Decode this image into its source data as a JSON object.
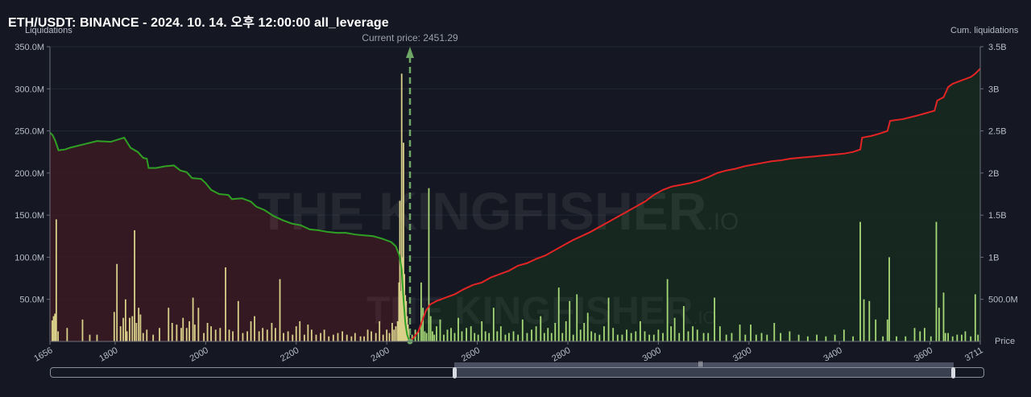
{
  "title": "ETH/USDT: BINANCE - 2024. 10. 14. 오후 12:00:00 all_leverage",
  "left_axis_label": "Liquidations",
  "right_axis_label": "Cum. liquidations",
  "x_axis_label": "Price",
  "watermark": "THE KINGFISHER.IO",
  "current_price_label": "Current price: 2451.29",
  "colors": {
    "background": "#151822",
    "bars_short_side": "#d9d08a",
    "bars_long_side": "#a8d977",
    "cum_long": "#2fa024",
    "cum_short": "#e32424",
    "fill_left": "#3b1a22",
    "fill_right": "#15291f",
    "current_price_line": "#6fa866"
  },
  "chart_data": {
    "type": "bar",
    "x_range": [
      1656,
      3711
    ],
    "x_ticks": [
      "1656",
      "1800",
      "2000",
      "2200",
      "2400",
      "2600",
      "2800",
      "3000",
      "3200",
      "3400",
      "3600",
      "3711"
    ],
    "y_left_ticks": [
      "50.0M",
      "100.0M",
      "150.0M",
      "200.0M",
      "250.0M",
      "300.0M",
      "350.0M"
    ],
    "y_left_range": [
      0,
      350
    ],
    "y_right_ticks": [
      "500.0M",
      "1B",
      "1.5B",
      "2B",
      "2.5B",
      "3B",
      "3.5B"
    ],
    "y_right_range": [
      0,
      3.5
    ],
    "current_price": 2451.29,
    "bars_unit": "M",
    "bars": [
      [
        1661,
        25
      ],
      [
        1664,
        30
      ],
      [
        1667,
        33
      ],
      [
        1670,
        145
      ],
      [
        1674,
        12
      ],
      [
        1694,
        16
      ],
      [
        1728,
        26
      ],
      [
        1744,
        8
      ],
      [
        1760,
        8
      ],
      [
        1798,
        35
      ],
      [
        1804,
        92
      ],
      [
        1812,
        18
      ],
      [
        1818,
        28
      ],
      [
        1823,
        50
      ],
      [
        1826,
        12
      ],
      [
        1832,
        28
      ],
      [
        1838,
        30
      ],
      [
        1843,
        132
      ],
      [
        1847,
        22
      ],
      [
        1852,
        40
      ],
      [
        1856,
        32
      ],
      [
        1862,
        10
      ],
      [
        1870,
        14
      ],
      [
        1884,
        8
      ],
      [
        1898,
        16
      ],
      [
        1918,
        40
      ],
      [
        1926,
        22
      ],
      [
        1936,
        20
      ],
      [
        1946,
        16
      ],
      [
        1950,
        28
      ],
      [
        1958,
        16
      ],
      [
        1964,
        24
      ],
      [
        1972,
        52
      ],
      [
        1976,
        20
      ],
      [
        1984,
        40
      ],
      [
        1996,
        10
      ],
      [
        2004,
        22
      ],
      [
        2012,
        18
      ],
      [
        2022,
        14
      ],
      [
        2032,
        16
      ],
      [
        2044,
        88
      ],
      [
        2052,
        14
      ],
      [
        2060,
        12
      ],
      [
        2072,
        48
      ],
      [
        2082,
        10
      ],
      [
        2092,
        12
      ],
      [
        2100,
        24
      ],
      [
        2108,
        30
      ],
      [
        2118,
        12
      ],
      [
        2126,
        16
      ],
      [
        2136,
        14
      ],
      [
        2146,
        22
      ],
      [
        2154,
        16
      ],
      [
        2164,
        74
      ],
      [
        2172,
        10
      ],
      [
        2182,
        12
      ],
      [
        2192,
        8
      ],
      [
        2200,
        18
      ],
      [
        2208,
        24
      ],
      [
        2218,
        8
      ],
      [
        2226,
        20
      ],
      [
        2234,
        14
      ],
      [
        2244,
        8
      ],
      [
        2254,
        10
      ],
      [
        2262,
        14
      ],
      [
        2272,
        6
      ],
      [
        2282,
        8
      ],
      [
        2292,
        10
      ],
      [
        2302,
        12
      ],
      [
        2312,
        8
      ],
      [
        2322,
        6
      ],
      [
        2330,
        10
      ],
      [
        2342,
        6
      ],
      [
        2350,
        6
      ],
      [
        2358,
        14
      ],
      [
        2366,
        12
      ],
      [
        2376,
        10
      ],
      [
        2384,
        24
      ],
      [
        2392,
        8
      ],
      [
        2400,
        14
      ],
      [
        2406,
        10
      ],
      [
        2412,
        22
      ],
      [
        2416,
        14
      ],
      [
        2420,
        18
      ],
      [
        2424,
        24
      ],
      [
        2427,
        70
      ],
      [
        2429,
        167
      ],
      [
        2431,
        60
      ],
      [
        2433,
        318
      ],
      [
        2435,
        100
      ],
      [
        2437,
        236
      ],
      [
        2439,
        80
      ],
      [
        2441,
        55
      ],
      [
        2443,
        48
      ],
      [
        2445,
        30
      ],
      [
        2447,
        20
      ],
      [
        2449,
        14
      ],
      [
        2456,
        8
      ],
      [
        2463,
        14
      ],
      [
        2470,
        12
      ],
      [
        2476,
        70
      ],
      [
        2480,
        40
      ],
      [
        2484,
        12
      ],
      [
        2488,
        10
      ],
      [
        2493,
        182
      ],
      [
        2497,
        30
      ],
      [
        2501,
        12
      ],
      [
        2505,
        8
      ],
      [
        2510,
        18
      ],
      [
        2518,
        26
      ],
      [
        2526,
        8
      ],
      [
        2534,
        14
      ],
      [
        2542,
        16
      ],
      [
        2550,
        10
      ],
      [
        2558,
        28
      ],
      [
        2566,
        12
      ],
      [
        2576,
        16
      ],
      [
        2586,
        18
      ],
      [
        2594,
        10
      ],
      [
        2602,
        8
      ],
      [
        2610,
        24
      ],
      [
        2618,
        12
      ],
      [
        2626,
        10
      ],
      [
        2636,
        40
      ],
      [
        2644,
        12
      ],
      [
        2652,
        18
      ],
      [
        2662,
        8
      ],
      [
        2670,
        10
      ],
      [
        2680,
        12
      ],
      [
        2690,
        8
      ],
      [
        2700,
        26
      ],
      [
        2710,
        10
      ],
      [
        2720,
        14
      ],
      [
        2730,
        18
      ],
      [
        2740,
        30
      ],
      [
        2748,
        10
      ],
      [
        2756,
        16
      ],
      [
        2764,
        10
      ],
      [
        2772,
        22
      ],
      [
        2780,
        64
      ],
      [
        2788,
        10
      ],
      [
        2796,
        24
      ],
      [
        2804,
        48
      ],
      [
        2812,
        8
      ],
      [
        2820,
        56
      ],
      [
        2828,
        14
      ],
      [
        2836,
        22
      ],
      [
        2844,
        34
      ],
      [
        2852,
        12
      ],
      [
        2860,
        10
      ],
      [
        2870,
        8
      ],
      [
        2880,
        18
      ],
      [
        2890,
        52
      ],
      [
        2900,
        16
      ],
      [
        2910,
        8
      ],
      [
        2920,
        8
      ],
      [
        2930,
        14
      ],
      [
        2940,
        10
      ],
      [
        2950,
        12
      ],
      [
        2960,
        24
      ],
      [
        2970,
        12
      ],
      [
        2980,
        8
      ],
      [
        2990,
        8
      ],
      [
        3000,
        14
      ],
      [
        3010,
        10
      ],
      [
        3020,
        74
      ],
      [
        3028,
        18
      ],
      [
        3036,
        28
      ],
      [
        3046,
        10
      ],
      [
        3056,
        42
      ],
      [
        3066,
        12
      ],
      [
        3076,
        18
      ],
      [
        3086,
        14
      ],
      [
        3100,
        10
      ],
      [
        3110,
        10
      ],
      [
        3124,
        52
      ],
      [
        3136,
        18
      ],
      [
        3150,
        8
      ],
      [
        3162,
        10
      ],
      [
        3180,
        20
      ],
      [
        3192,
        8
      ],
      [
        3204,
        20
      ],
      [
        3216,
        8
      ],
      [
        3228,
        10
      ],
      [
        3240,
        8
      ],
      [
        3256,
        22
      ],
      [
        3270,
        10
      ],
      [
        3290,
        12
      ],
      [
        3310,
        8
      ],
      [
        3330,
        6
      ],
      [
        3350,
        8
      ],
      [
        3370,
        6
      ],
      [
        3390,
        8
      ],
      [
        3410,
        14
      ],
      [
        3430,
        6
      ],
      [
        3446,
        142
      ],
      [
        3454,
        50
      ],
      [
        3466,
        48
      ],
      [
        3480,
        26
      ],
      [
        3496,
        6
      ],
      [
        3506,
        26
      ],
      [
        3510,
        100
      ],
      [
        3526,
        6
      ],
      [
        3546,
        6
      ],
      [
        3566,
        16
      ],
      [
        3578,
        12
      ],
      [
        3588,
        16
      ],
      [
        3602,
        6
      ],
      [
        3614,
        142
      ],
      [
        3620,
        40
      ],
      [
        3630,
        58
      ],
      [
        3634,
        10
      ],
      [
        3640,
        10
      ],
      [
        3650,
        6
      ],
      [
        3660,
        8
      ],
      [
        3670,
        8
      ],
      [
        3678,
        12
      ],
      [
        3690,
        6
      ],
      [
        3700,
        56
      ],
      [
        3706,
        8
      ]
    ],
    "cum_long_series": [
      [
        1656,
        2.48
      ],
      [
        1662,
        2.45
      ],
      [
        1668,
        2.38
      ],
      [
        1675,
        2.27
      ],
      [
        1690,
        2.28
      ],
      [
        1700,
        2.3
      ],
      [
        1730,
        2.34
      ],
      [
        1760,
        2.38
      ],
      [
        1790,
        2.37
      ],
      [
        1820,
        2.42
      ],
      [
        1834,
        2.3
      ],
      [
        1850,
        2.25
      ],
      [
        1862,
        2.18
      ],
      [
        1870,
        2.17
      ],
      [
        1874,
        2.06
      ],
      [
        1890,
        2.06
      ],
      [
        1910,
        2.08
      ],
      [
        1930,
        2.09
      ],
      [
        1944,
        2.03
      ],
      [
        1958,
        2.01
      ],
      [
        1970,
        1.94
      ],
      [
        1990,
        1.93
      ],
      [
        2000,
        1.88
      ],
      [
        2012,
        1.8
      ],
      [
        2030,
        1.75
      ],
      [
        2050,
        1.74
      ],
      [
        2058,
        1.69
      ],
      [
        2080,
        1.7
      ],
      [
        2100,
        1.66
      ],
      [
        2112,
        1.6
      ],
      [
        2130,
        1.56
      ],
      [
        2150,
        1.49
      ],
      [
        2170,
        1.44
      ],
      [
        2190,
        1.4
      ],
      [
        2210,
        1.38
      ],
      [
        2230,
        1.33
      ],
      [
        2250,
        1.32
      ],
      [
        2270,
        1.3
      ],
      [
        2290,
        1.29
      ],
      [
        2310,
        1.29
      ],
      [
        2330,
        1.27
      ],
      [
        2350,
        1.26
      ],
      [
        2370,
        1.25
      ],
      [
        2390,
        1.22
      ],
      [
        2410,
        1.18
      ],
      [
        2420,
        1.13
      ],
      [
        2428,
        1.02
      ],
      [
        2433,
        0.85
      ],
      [
        2437,
        0.5
      ],
      [
        2441,
        0.22
      ],
      [
        2445,
        0.08
      ],
      [
        2449,
        0.02
      ],
      [
        2451,
        0.0
      ]
    ],
    "cum_short_series": [
      [
        2451,
        0.0
      ],
      [
        2460,
        0.05
      ],
      [
        2470,
        0.12
      ],
      [
        2478,
        0.24
      ],
      [
        2486,
        0.36
      ],
      [
        2496,
        0.44
      ],
      [
        2510,
        0.48
      ],
      [
        2530,
        0.52
      ],
      [
        2550,
        0.56
      ],
      [
        2570,
        0.62
      ],
      [
        2590,
        0.67
      ],
      [
        2610,
        0.7
      ],
      [
        2630,
        0.76
      ],
      [
        2650,
        0.8
      ],
      [
        2670,
        0.84
      ],
      [
        2690,
        0.9
      ],
      [
        2710,
        0.93
      ],
      [
        2730,
        0.98
      ],
      [
        2750,
        1.02
      ],
      [
        2770,
        1.08
      ],
      [
        2790,
        1.14
      ],
      [
        2810,
        1.2
      ],
      [
        2830,
        1.25
      ],
      [
        2850,
        1.3
      ],
      [
        2870,
        1.36
      ],
      [
        2890,
        1.42
      ],
      [
        2910,
        1.48
      ],
      [
        2930,
        1.54
      ],
      [
        2950,
        1.6
      ],
      [
        2970,
        1.66
      ],
      [
        2990,
        1.74
      ],
      [
        3010,
        1.8
      ],
      [
        3030,
        1.84
      ],
      [
        3050,
        1.86
      ],
      [
        3070,
        1.88
      ],
      [
        3090,
        1.91
      ],
      [
        3110,
        1.95
      ],
      [
        3130,
        2.0
      ],
      [
        3150,
        2.03
      ],
      [
        3170,
        2.05
      ],
      [
        3190,
        2.08
      ],
      [
        3210,
        2.1
      ],
      [
        3230,
        2.12
      ],
      [
        3250,
        2.14
      ],
      [
        3270,
        2.15
      ],
      [
        3290,
        2.17
      ],
      [
        3310,
        2.18
      ],
      [
        3330,
        2.19
      ],
      [
        3350,
        2.2
      ],
      [
        3370,
        2.21
      ],
      [
        3390,
        2.22
      ],
      [
        3410,
        2.23
      ],
      [
        3430,
        2.25
      ],
      [
        3446,
        2.28
      ],
      [
        3450,
        2.42
      ],
      [
        3470,
        2.44
      ],
      [
        3490,
        2.47
      ],
      [
        3506,
        2.5
      ],
      [
        3512,
        2.62
      ],
      [
        3540,
        2.64
      ],
      [
        3570,
        2.68
      ],
      [
        3590,
        2.71
      ],
      [
        3610,
        2.74
      ],
      [
        3616,
        2.86
      ],
      [
        3630,
        2.9
      ],
      [
        3640,
        3.02
      ],
      [
        3650,
        3.06
      ],
      [
        3670,
        3.1
      ],
      [
        3690,
        3.14
      ],
      [
        3700,
        3.18
      ],
      [
        3711,
        3.24
      ]
    ]
  }
}
